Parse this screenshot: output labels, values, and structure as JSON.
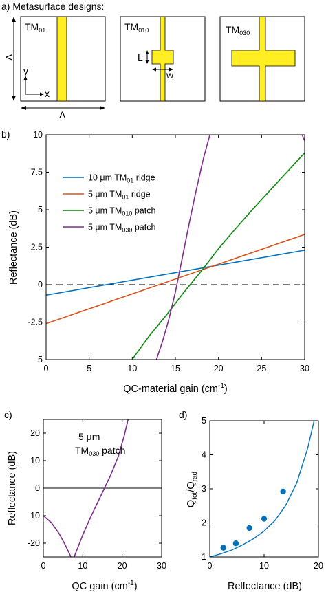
{
  "panel_a": {
    "label": "a) Metasurface designs:",
    "cells": [
      {
        "name": "TM",
        "sub": "01"
      },
      {
        "name": "TM",
        "sub": "010"
      },
      {
        "name": "TM",
        "sub": "030"
      }
    ],
    "dim_vertical": "Λ",
    "dim_horizontal": "Λ",
    "axis_y": "y",
    "axis_x": "x",
    "dim_L": "L",
    "dim_w": "w",
    "colors": {
      "metal": "#ffee22",
      "outline": "#000000"
    }
  },
  "chart_data": [
    {
      "type": "line",
      "panel_label": "b)",
      "xlabel": "QC-material gain (cm",
      "xlabel_sup": "-1",
      "xlabel_end": ")",
      "ylabel": "Reflectance (dB)",
      "xlim": [
        0,
        30
      ],
      "ylim": [
        -5,
        10
      ],
      "xticks": [
        0,
        5,
        10,
        15,
        20,
        25,
        30
      ],
      "yticks": [
        -5,
        -2.5,
        0,
        2.5,
        5,
        7.5,
        10
      ],
      "xtick_labels": [
        "0",
        "5",
        "10",
        "15",
        "20",
        "25",
        "30"
      ],
      "ytick_labels": [
        "-5",
        "-2.5",
        "0",
        "2.5",
        "5",
        "7.5",
        "10"
      ],
      "legend_position": "top-left",
      "reference_line": {
        "y": 0,
        "style": "dashed"
      },
      "series": [
        {
          "name": "10 μm TM",
          "sub": "01",
          "suffix": " ridge",
          "color": "#0072bd",
          "x": [
            0,
            30
          ],
          "y": [
            -0.7,
            2.3
          ]
        },
        {
          "name": "5 μm TM",
          "sub": "01",
          "suffix": " ridge",
          "color": "#d95319",
          "x": [
            0,
            30
          ],
          "y": [
            -2.6,
            3.35
          ]
        },
        {
          "name": "5 μm TM",
          "sub": "010",
          "suffix": " patch",
          "color": "#0a8a0a",
          "x": [
            10,
            12,
            14,
            16,
            18,
            20,
            22,
            24,
            26,
            28,
            30
          ],
          "y": [
            -4.98,
            -3.4,
            -2.0,
            -0.5,
            0.9,
            2.4,
            3.75,
            5.05,
            6.3,
            7.55,
            8.8
          ]
        },
        {
          "name": "5 μm TM",
          "sub": "030",
          "suffix": " patch",
          "color": "#7e2f8e",
          "x": [
            12.8,
            13.5,
            14.2,
            15.0,
            15.7,
            16.5,
            17.3,
            18.2,
            19.0
          ],
          "y": [
            -5,
            -3.8,
            -2.4,
            -0.5,
            1.5,
            3.8,
            6.0,
            8.3,
            10
          ],
          "edge_tail": {
            "x": [
              29.7,
              30
            ],
            "y": [
              10,
              9.6
            ]
          }
        }
      ]
    },
    {
      "type": "line",
      "panel_label": "c)",
      "xlabel": "QC gain (cm",
      "xlabel_sup": "-1",
      "xlabel_end": ")",
      "ylabel": "Reflectance (dB)",
      "xlim": [
        0,
        30
      ],
      "ylim": [
        -25,
        25
      ],
      "xticks": [
        0,
        10,
        20,
        30
      ],
      "yticks": [
        -20,
        -10,
        0,
        10,
        20
      ],
      "xtick_labels": [
        "0",
        "10",
        "20",
        "30"
      ],
      "ytick_labels": [
        "-20",
        "-10",
        "0",
        "10",
        "20"
      ],
      "annotation": {
        "line1": "5 μm",
        "line2": "TM",
        "sub": "030",
        "suffix": " patch"
      },
      "reference_line": {
        "y": 0,
        "style": "solid"
      },
      "series": [
        {
          "color": "#7e2f8e",
          "x": [
            0,
            2,
            4,
            5.5,
            6.5,
            7.0
          ],
          "y": [
            -10,
            -12.5,
            -16.5,
            -20.5,
            -23.5,
            -25
          ]
        },
        {
          "color": "#7e2f8e",
          "x": [
            7.8,
            8.5,
            10,
            12,
            14,
            15.5,
            17,
            19,
            20.5,
            21.5
          ],
          "y": [
            -25,
            -22.5,
            -17,
            -10.5,
            -4.5,
            0,
            4.5,
            11.5,
            19,
            25
          ]
        }
      ]
    },
    {
      "type": "scatter",
      "panel_label": "d)",
      "xlabel": "Relfectance (dB)",
      "ylabel": "Q",
      "ylabel_sub1": "tot",
      "ylabel_mid": "/Q",
      "ylabel_sub2": "rad",
      "xlim": [
        0,
        20
      ],
      "ylim": [
        1,
        5
      ],
      "xticks": [
        0,
        10,
        20
      ],
      "yticks": [
        1,
        2,
        3,
        4,
        5
      ],
      "xtick_labels": [
        "0",
        "10",
        "20"
      ],
      "ytick_labels": [
        "1",
        "2",
        "3",
        "4",
        "5"
      ],
      "color": "#0072bd",
      "points": {
        "x": [
          2.5,
          4.8,
          7.3,
          10.0,
          13.5
        ],
        "y": [
          1.27,
          1.4,
          1.85,
          2.12,
          2.92
        ]
      },
      "fit_curve": {
        "x": [
          0,
          2,
          4,
          6,
          8,
          10,
          12,
          14,
          16,
          18,
          19.2
        ],
        "y": [
          1.0,
          1.09,
          1.2,
          1.35,
          1.53,
          1.76,
          2.07,
          2.52,
          3.17,
          4.18,
          5.0
        ]
      }
    }
  ]
}
